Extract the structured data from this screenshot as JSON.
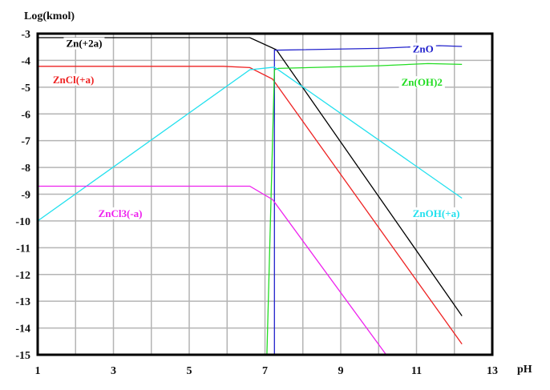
{
  "chart_data": {
    "type": "line",
    "title": "",
    "xlabel": "pH",
    "ylabel": "Log(kmol)",
    "xlim": [
      1,
      13
    ],
    "ylim": [
      -15,
      -3
    ],
    "grid": true,
    "x_ticks": [
      1,
      3,
      5,
      7,
      9,
      11,
      13
    ],
    "x_tick_labels": [
      "1",
      "3",
      "5",
      "7",
      "9",
      "11",
      "13"
    ],
    "x_grid": [
      1,
      2,
      3,
      4,
      5,
      6,
      7,
      8,
      9,
      10,
      11,
      12,
      13
    ],
    "y_ticks": [
      -3,
      -4,
      -5,
      -6,
      -7,
      -8,
      -9,
      -10,
      -11,
      -12,
      -13,
      -14,
      -15
    ],
    "y_tick_labels": [
      "-3",
      "-4",
      "-5",
      "-6",
      "-7",
      "-8",
      "-9",
      "-10",
      "-11",
      "-12",
      "-13",
      "-14",
      "-15"
    ],
    "legend_position": "inline labels",
    "series": [
      {
        "name": "Zn(+2a)",
        "color": "#000000",
        "points": [
          [
            1,
            -3.15
          ],
          [
            6.6,
            -3.15
          ],
          [
            7.3,
            -3.6
          ],
          [
            12.2,
            -13.55
          ]
        ],
        "label_pos": [
          1.75,
          -3.5
        ]
      },
      {
        "name": "ZnCl(+a)",
        "color": "#ee2222",
        "points": [
          [
            1,
            -4.22
          ],
          [
            5.9,
            -4.22
          ],
          [
            6.6,
            -4.27
          ],
          [
            7.2,
            -4.7
          ],
          [
            12.2,
            -14.6
          ]
        ],
        "label_pos": [
          1.4,
          -4.85
        ]
      },
      {
        "name": "ZnO",
        "color": "#2222cc",
        "points": [
          [
            7.25,
            -15
          ],
          [
            7.25,
            -3.62
          ],
          [
            10.0,
            -3.55
          ],
          [
            11.6,
            -3.45
          ],
          [
            12.2,
            -3.48
          ]
        ],
        "label_pos": [
          10.9,
          -3.7
        ]
      },
      {
        "name": "Zn(OH)2",
        "color": "#22dd22",
        "points": [
          [
            7.05,
            -15
          ],
          [
            7.25,
            -4.35
          ],
          [
            7.35,
            -4.3
          ],
          [
            10.0,
            -4.2
          ],
          [
            11.3,
            -4.12
          ],
          [
            12.2,
            -4.15
          ]
        ],
        "label_pos": [
          10.6,
          -4.95
        ]
      },
      {
        "name": "ZnOH(+a)",
        "color": "#22e0ee",
        "points": [
          [
            1,
            -10.0
          ],
          [
            6.6,
            -4.35
          ],
          [
            7.25,
            -4.25
          ],
          [
            12.2,
            -9.15
          ]
        ],
        "label_pos": [
          10.9,
          -9.85
        ]
      },
      {
        "name": "ZnCl3(-a)",
        "color": "#ee22ee",
        "points": [
          [
            1,
            -8.7
          ],
          [
            6.6,
            -8.7
          ],
          [
            7.2,
            -9.2
          ],
          [
            10.2,
            -15
          ]
        ],
        "label_pos": [
          2.6,
          -9.85
        ]
      }
    ]
  }
}
